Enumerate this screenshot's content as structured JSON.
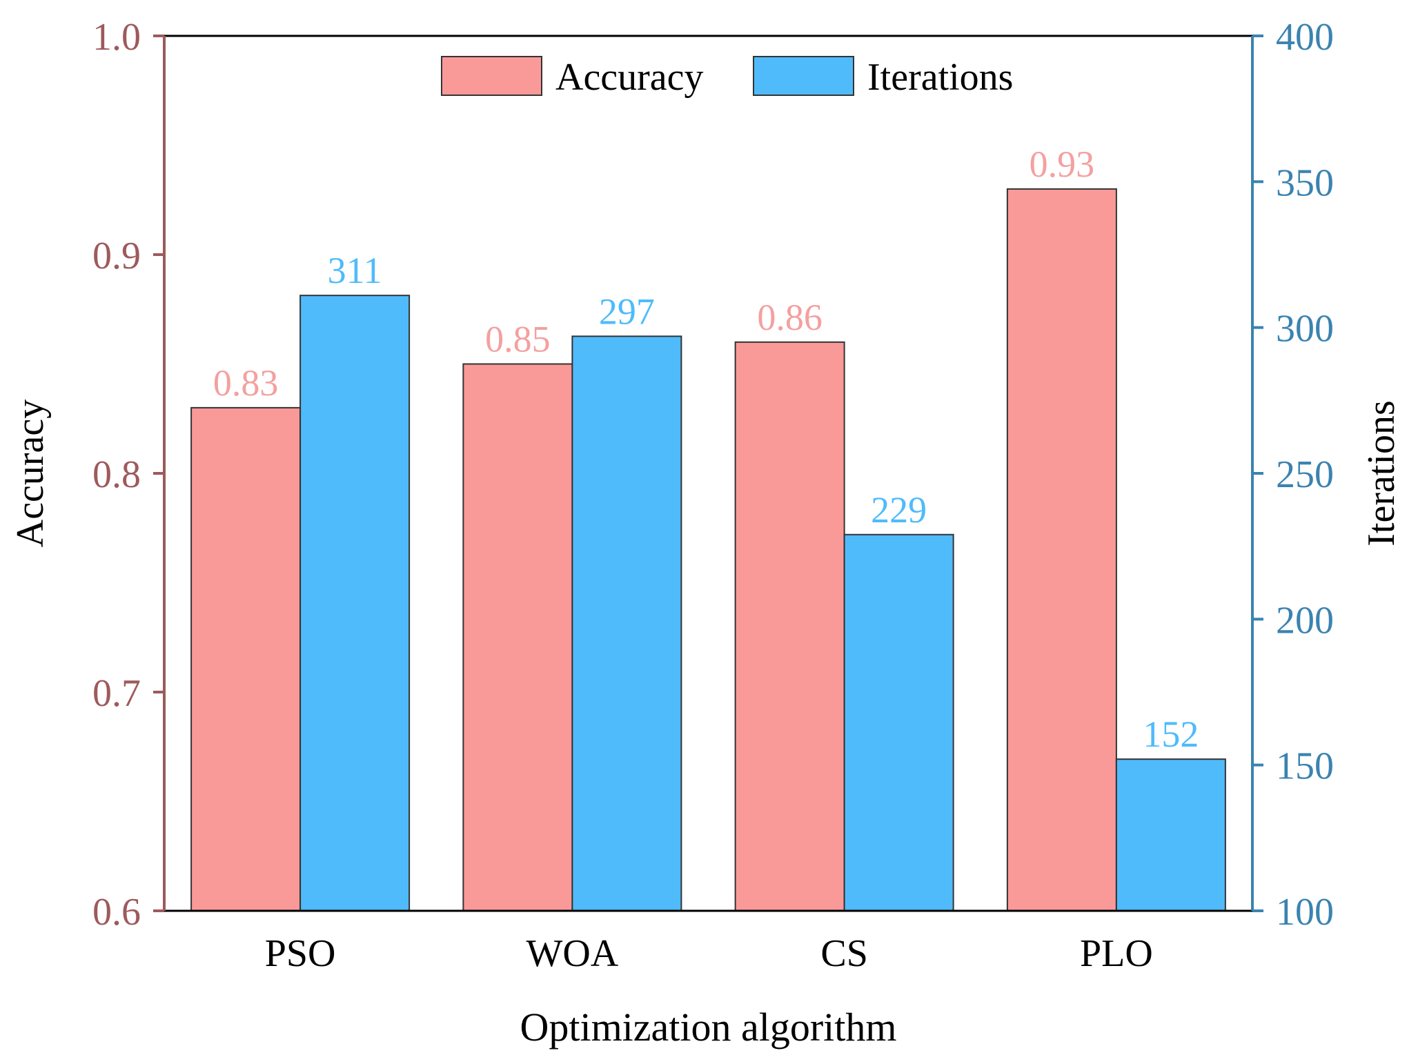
{
  "chart_data": {
    "type": "bar",
    "title": "",
    "xlabel": "Optimization algorithm",
    "categories": [
      "PSO",
      "WOA",
      "CS",
      "PLO"
    ],
    "series": [
      {
        "name": "Accuracy",
        "axis": "left",
        "color": "#FA9A98",
        "label_color": "#F4A0A0",
        "values": [
          0.83,
          0.85,
          0.86,
          0.93
        ],
        "value_labels": [
          "0.83",
          "0.85",
          "0.86",
          "0.93"
        ]
      },
      {
        "name": "Iterations",
        "axis": "right",
        "color": "#4FBBFB",
        "label_color": "#4FBBFB",
        "values": [
          311,
          297,
          229,
          152
        ],
        "value_labels": [
          "311",
          "297",
          "229",
          "152"
        ]
      }
    ],
    "y_left": {
      "label": "Accuracy",
      "range": [
        0.6,
        1.0
      ],
      "ticks": [
        "0.6",
        "0.7",
        "0.8",
        "0.9",
        "1.0"
      ],
      "tick_values": [
        0.6,
        0.7,
        0.8,
        0.9,
        1.0
      ],
      "color": "#9E5A5C"
    },
    "y_right": {
      "label": "Iterations",
      "range": [
        100,
        400
      ],
      "ticks": [
        "100",
        "150",
        "200",
        "250",
        "300",
        "350",
        "400"
      ],
      "tick_values": [
        100,
        150,
        200,
        250,
        300,
        350,
        400
      ],
      "color": "#3B83B0"
    },
    "legend": {
      "placement": "top-center",
      "entries": [
        "Accuracy",
        "Iterations"
      ]
    },
    "grid": false
  }
}
